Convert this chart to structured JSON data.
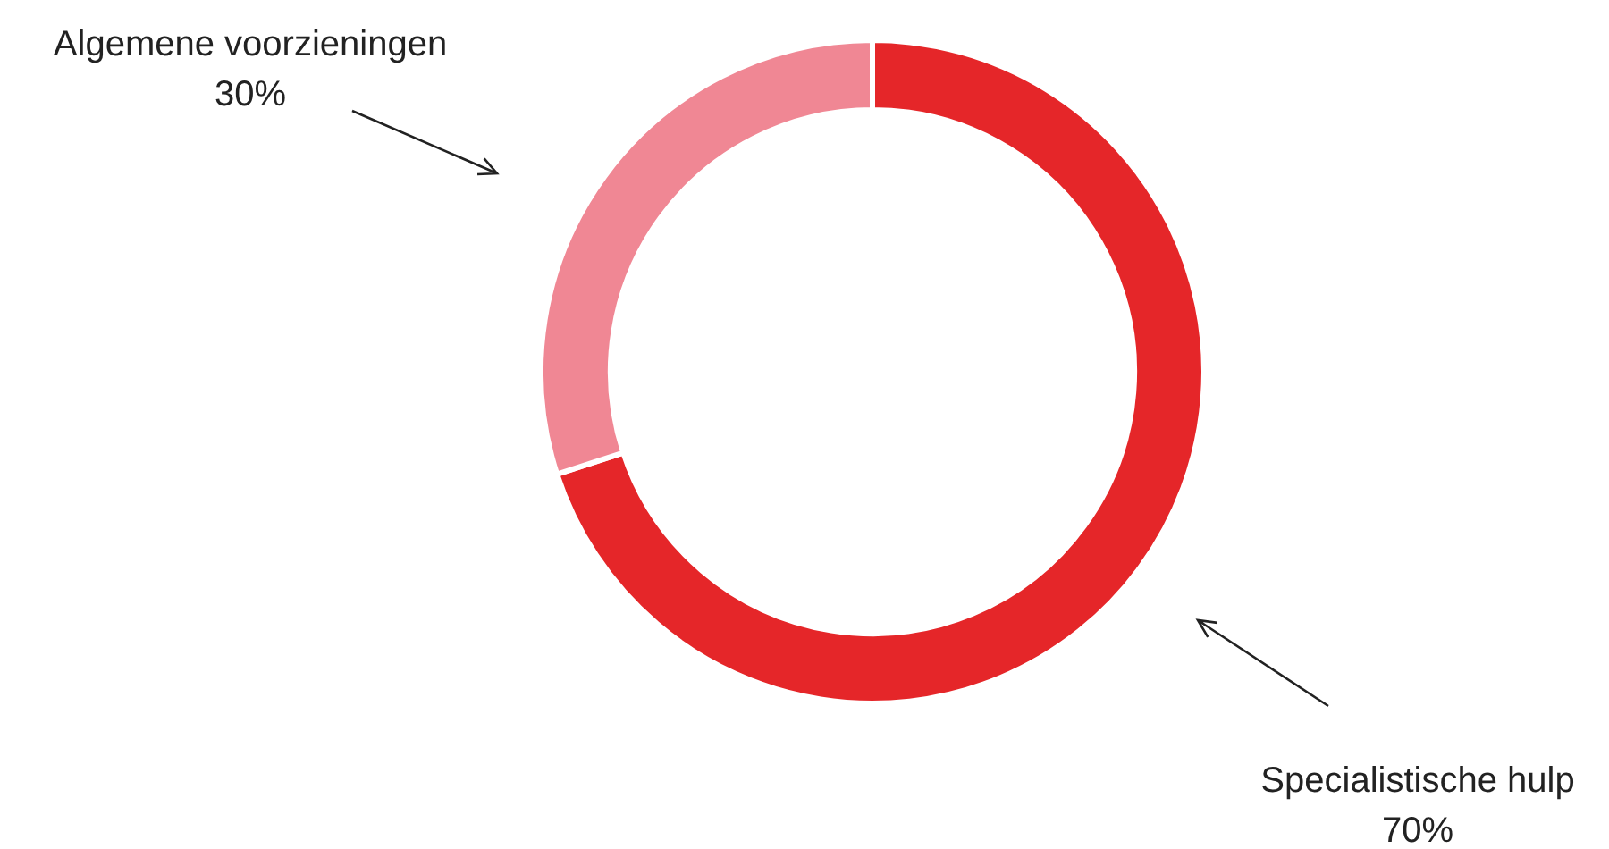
{
  "chart_data": {
    "type": "donut",
    "categories": [
      "Specialistische hulp",
      "Algemene voorzieningen"
    ],
    "values": [
      70,
      30
    ],
    "colors": [
      "#e52629",
      "#f08794"
    ],
    "value_labels": [
      "70%",
      "30%"
    ],
    "legend": false
  }
}
